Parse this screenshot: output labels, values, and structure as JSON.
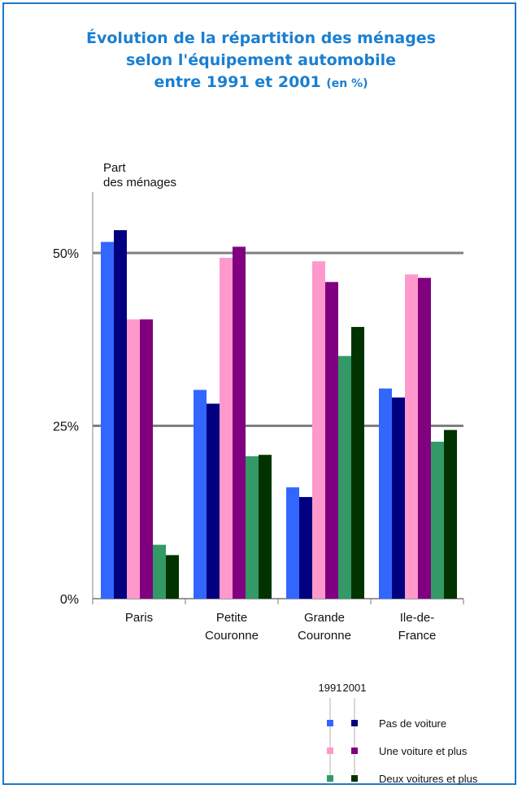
{
  "title": {
    "line1": "Évolution de la répartition des ménages",
    "line2": "selon l'équipement automobile",
    "line3": "entre 1991 et 2001",
    "unit": "(en %)"
  },
  "chart_data": {
    "type": "bar",
    "title": "Évolution de la répartition des ménages selon l'équipement automobile entre 1991 et 2001 (en %)",
    "ylabel_lines": [
      "Part",
      "des ménages"
    ],
    "categories": [
      [
        "Paris"
      ],
      [
        "Petite",
        "Couronne"
      ],
      [
        "Grande",
        "Couronne"
      ],
      [
        "Ile-de-",
        "France"
      ]
    ],
    "yticks": [
      "0%",
      "25%",
      "50%"
    ],
    "ytick_values": [
      0,
      25,
      50
    ],
    "ylim": [
      0,
      60
    ],
    "grid": "horizontal at 25% and 50%",
    "legend_position": "bottom-right",
    "legend_years": [
      "1991",
      "2001"
    ],
    "legend_groups": [
      "Pas de voiture",
      "Une voiture et plus",
      "Deux voitures et plus"
    ],
    "series": [
      {
        "name": "Pas de voiture",
        "year": "1991",
        "color": "#3366ff",
        "values": [
          51.6,
          30.2,
          16.1,
          30.4
        ]
      },
      {
        "name": "Pas de voiture",
        "year": "2001",
        "color": "#000080",
        "values": [
          53.3,
          28.2,
          14.7,
          29.1
        ]
      },
      {
        "name": "Une voiture et plus",
        "year": "1991",
        "color": "#ff99cc",
        "values": [
          40.4,
          49.3,
          48.8,
          46.9
        ]
      },
      {
        "name": "Une voiture et plus",
        "year": "2001",
        "color": "#800080",
        "values": [
          40.4,
          50.9,
          45.8,
          46.4
        ]
      },
      {
        "name": "Deux voitures et plus",
        "year": "1991",
        "color": "#339966",
        "values": [
          7.8,
          20.6,
          35.1,
          22.7
        ]
      },
      {
        "name": "Deux voitures et plus",
        "year": "2001",
        "color": "#003300",
        "values": [
          6.3,
          20.8,
          39.3,
          24.4
        ]
      }
    ]
  }
}
